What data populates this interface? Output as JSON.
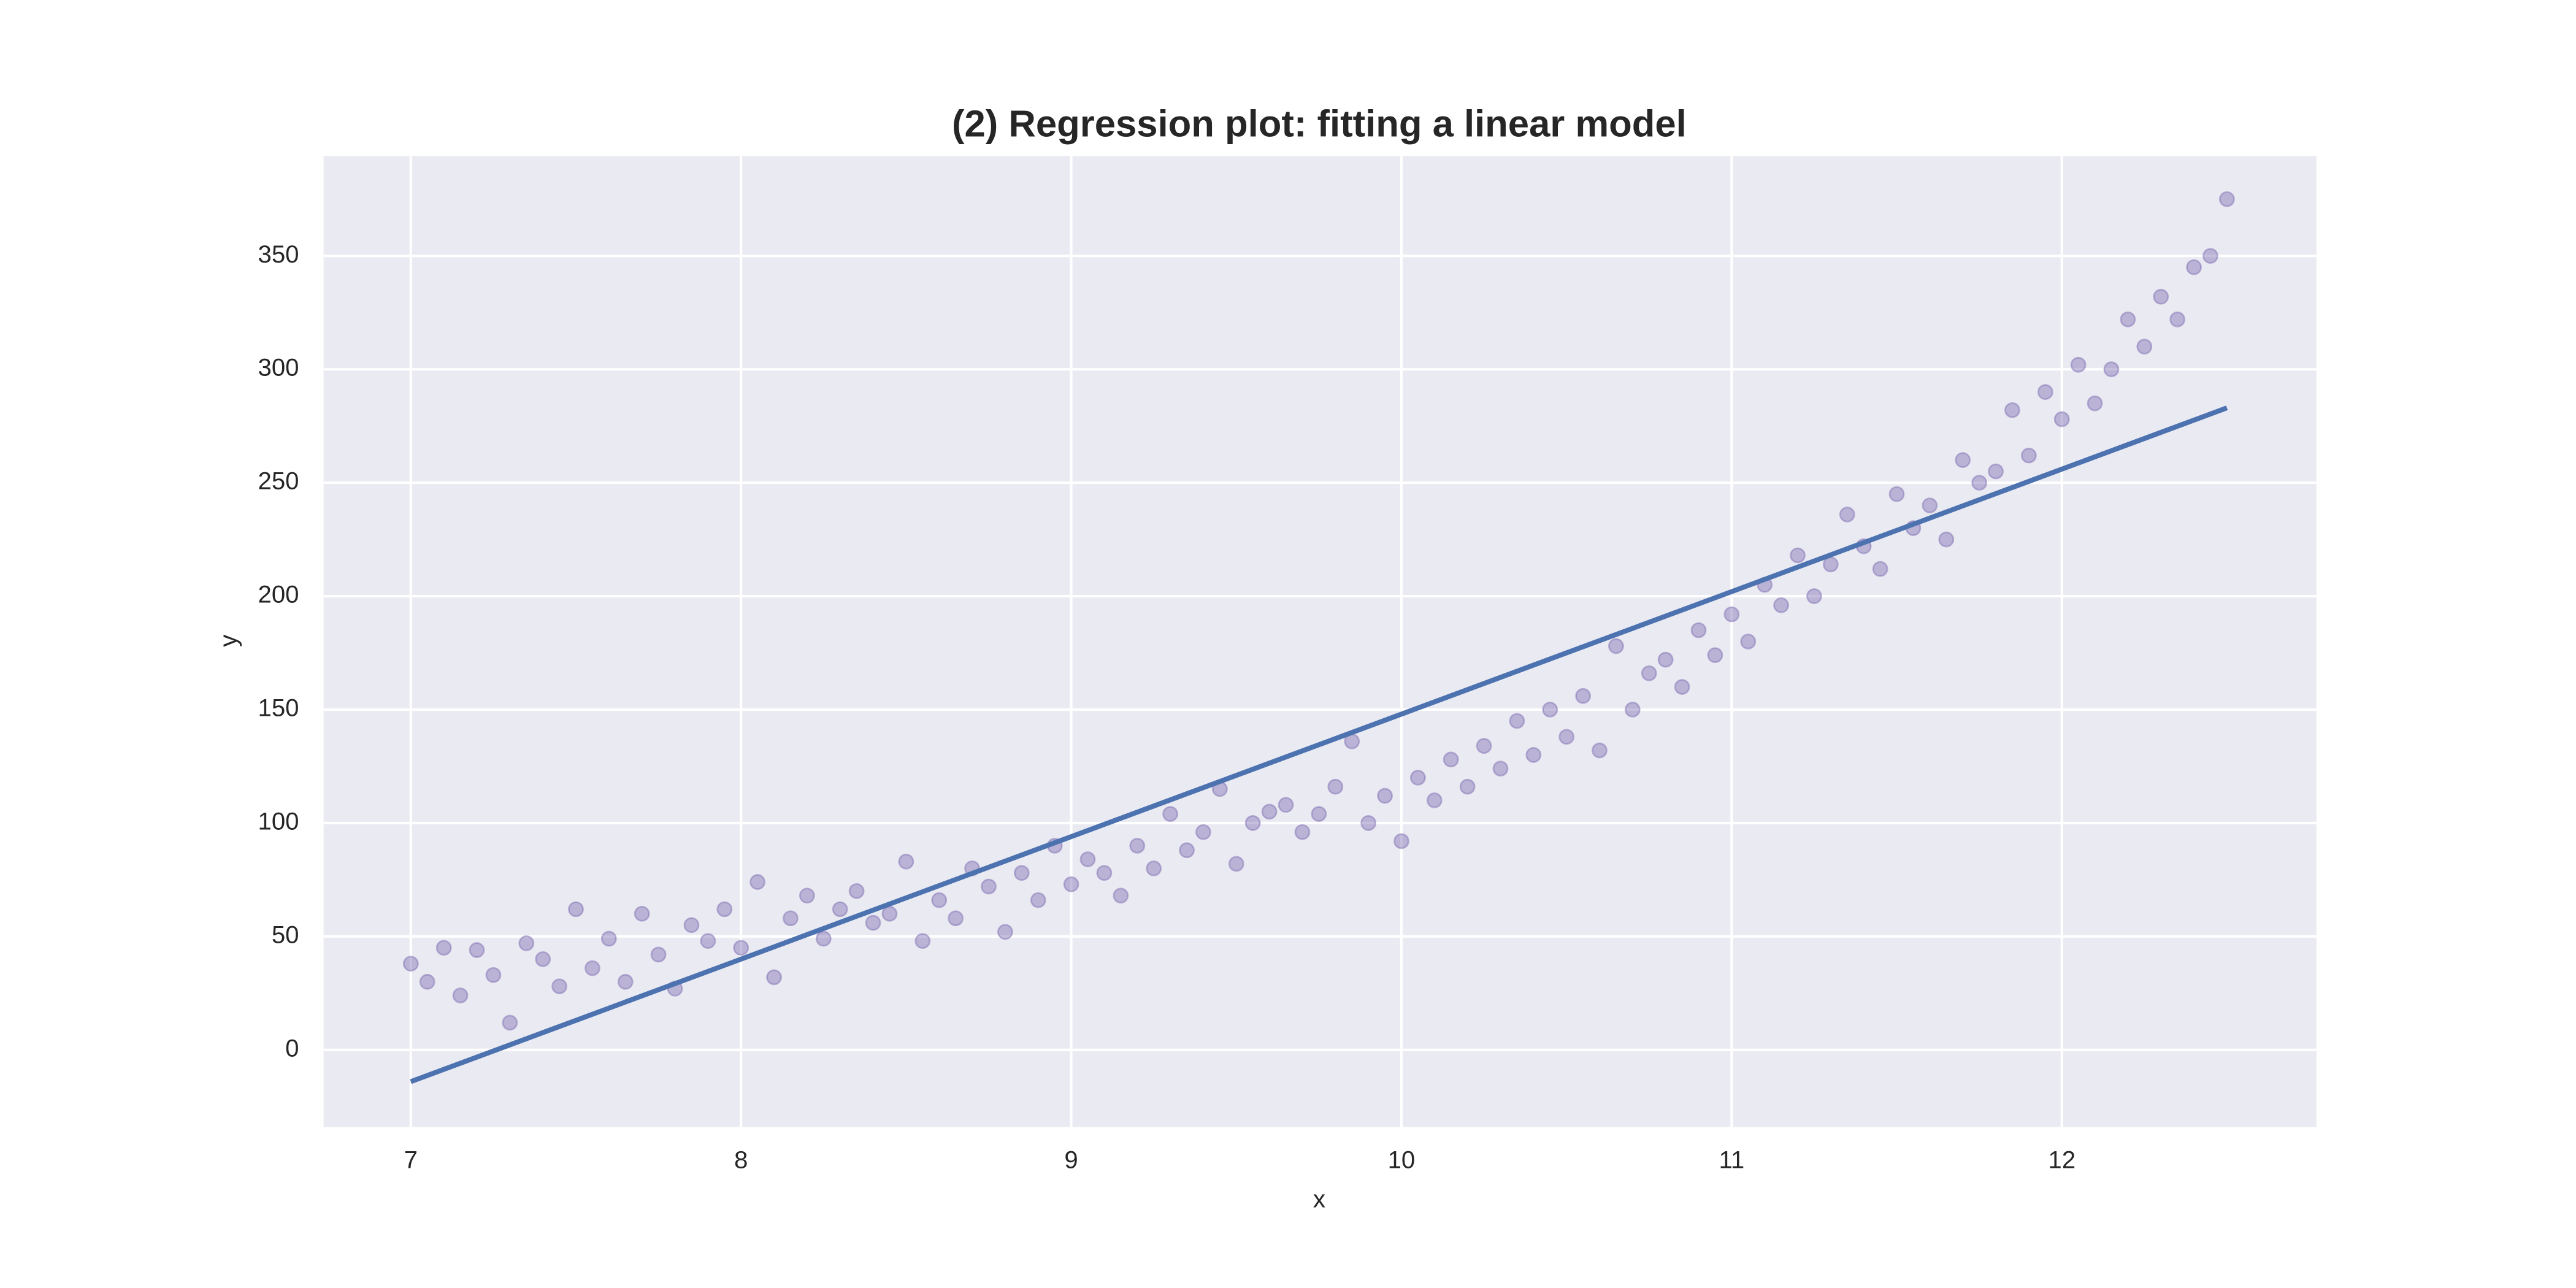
{
  "chart_data": {
    "type": "scatter",
    "title": "(2) Regression plot: fitting a linear model",
    "xlabel": "x",
    "ylabel": "y",
    "xlim": [
      6.736,
      12.771
    ],
    "ylim": [
      -34,
      394
    ],
    "xticks": [
      7,
      8,
      9,
      10,
      11,
      12
    ],
    "yticks": [
      0,
      50,
      100,
      150,
      200,
      250,
      300,
      350
    ],
    "grid": true,
    "background": "#eaeaf2",
    "series": [
      {
        "type": "scatter",
        "color": "#8172b3",
        "x": [
          7.0,
          7.05,
          7.1,
          7.15,
          7.2,
          7.25,
          7.3,
          7.35,
          7.4,
          7.45,
          7.5,
          7.55,
          7.6,
          7.65,
          7.7,
          7.75,
          7.8,
          7.85,
          7.9,
          7.95,
          8.0,
          8.05,
          8.1,
          8.15,
          8.2,
          8.25,
          8.3,
          8.35,
          8.4,
          8.45,
          8.5,
          8.55,
          8.6,
          8.65,
          8.7,
          8.75,
          8.8,
          8.85,
          8.9,
          8.95,
          9.0,
          9.05,
          9.1,
          9.15,
          9.2,
          9.25,
          9.3,
          9.35,
          9.4,
          9.45,
          9.5,
          9.55,
          9.6,
          9.65,
          9.7,
          9.75,
          9.8,
          9.85,
          9.9,
          9.95,
          10.0,
          10.05,
          10.1,
          10.15,
          10.2,
          10.25,
          10.3,
          10.35,
          10.4,
          10.45,
          10.5,
          10.55,
          10.6,
          10.65,
          10.7,
          10.75,
          10.8,
          10.85,
          10.9,
          10.95,
          11.0,
          11.05,
          11.1,
          11.15,
          11.2,
          11.25,
          11.3,
          11.35,
          11.4,
          11.45,
          11.5,
          11.55,
          11.6,
          11.65,
          11.7,
          11.75,
          11.8,
          11.85,
          11.9,
          11.95,
          12.0,
          12.05,
          12.1,
          12.15,
          12.2,
          12.25,
          12.3,
          12.35,
          12.4,
          12.45,
          12.5
        ],
        "values": [
          38,
          30,
          45,
          24,
          44,
          33,
          12,
          47,
          40,
          28,
          62,
          36,
          49,
          30,
          60,
          42,
          27,
          55,
          48,
          62,
          45,
          74,
          32,
          58,
          68,
          49,
          62,
          70,
          56,
          60,
          83,
          48,
          66,
          58,
          80,
          72,
          52,
          78,
          66,
          90,
          73,
          84,
          78,
          68,
          90,
          80,
          104,
          88,
          96,
          115,
          82,
          100,
          105,
          108,
          96,
          104,
          116,
          136,
          100,
          112,
          92,
          120,
          110,
          128,
          116,
          134,
          124,
          145,
          130,
          150,
          138,
          156,
          132,
          178,
          150,
          166,
          172,
          160,
          185,
          174,
          192,
          180,
          205,
          196,
          218,
          200,
          214,
          236,
          222,
          212,
          245,
          230,
          240,
          225,
          260,
          250,
          255,
          282,
          262,
          290,
          278,
          302,
          285,
          300,
          322,
          310,
          332,
          322,
          345,
          350,
          375
        ]
      },
      {
        "type": "line",
        "color": "#4c72b0",
        "x": [
          7,
          12.5
        ],
        "values": [
          -14,
          283
        ]
      }
    ]
  }
}
